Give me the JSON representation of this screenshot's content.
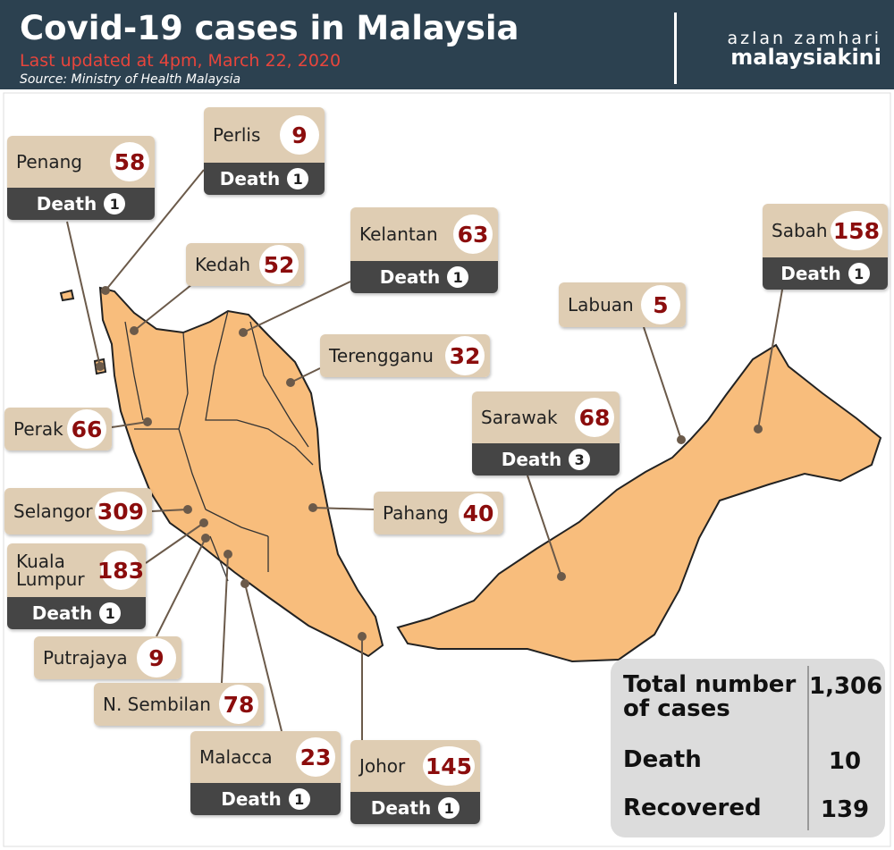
{
  "header": {
    "title": "Covid-19 cases in Malaysia",
    "updated": "Last updated at 4pm, March 22, 2020",
    "source": "Source: Ministry of Health Malaysia",
    "credit_author": "azlan zamhari",
    "credit_outlet": "malaysiakini"
  },
  "death_label": "Death",
  "states": [
    {
      "name": "Penang",
      "cases": 58,
      "deaths": 1
    },
    {
      "name": "Perlis",
      "cases": 9,
      "deaths": 1
    },
    {
      "name": "Kedah",
      "cases": 52
    },
    {
      "name": "Kelantan",
      "cases": 63,
      "deaths": 1
    },
    {
      "name": "Terengganu",
      "cases": 32
    },
    {
      "name": "Perak",
      "cases": 66
    },
    {
      "name": "Selangor",
      "cases": 309
    },
    {
      "name": "Kuala Lumpur",
      "cases": 183,
      "deaths": 1
    },
    {
      "name": "Putrajaya",
      "cases": 9
    },
    {
      "name": "N. Sembilan",
      "cases": 78
    },
    {
      "name": "Malacca",
      "cases": 23,
      "deaths": 1
    },
    {
      "name": "Johor",
      "cases": 145,
      "deaths": 1
    },
    {
      "name": "Pahang",
      "cases": 40
    },
    {
      "name": "Sarawak",
      "cases": 68,
      "deaths": 3
    },
    {
      "name": "Labuan",
      "cases": 5
    },
    {
      "name": "Sabah",
      "cases": 158,
      "deaths": 1
    }
  ],
  "summary": {
    "rows": [
      {
        "label": "Total number of cases",
        "value": "1,306"
      },
      {
        "label": "Death",
        "value": 10
      },
      {
        "label": "Recovered",
        "value": 139
      }
    ]
  }
}
